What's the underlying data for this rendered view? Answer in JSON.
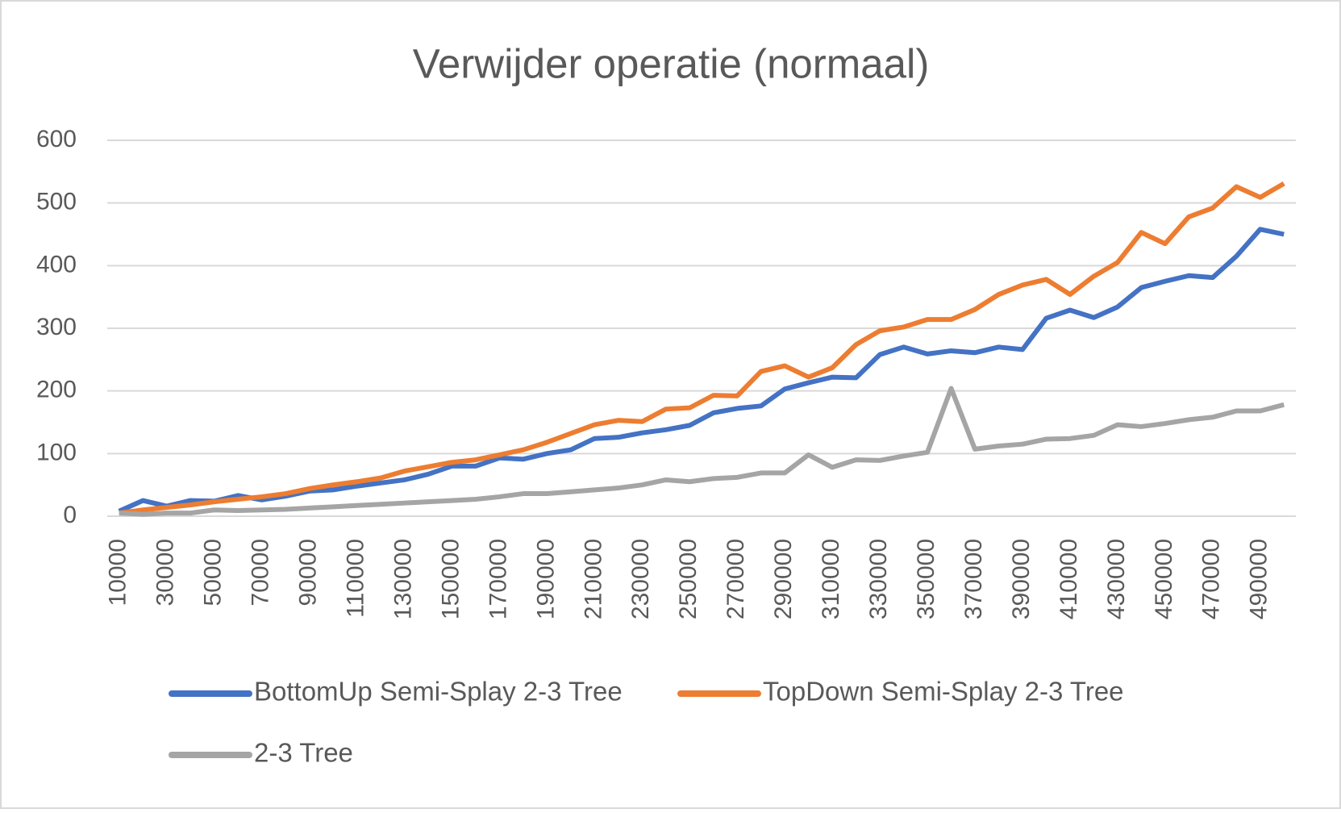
{
  "chart_data": {
    "type": "line",
    "title": "Verwijder operatie (normaal)",
    "categories": [
      10000,
      null,
      30000,
      null,
      50000,
      null,
      70000,
      null,
      90000,
      null,
      110000,
      null,
      130000,
      null,
      150000,
      null,
      170000,
      null,
      190000,
      null,
      210000,
      null,
      230000,
      null,
      250000,
      null,
      270000,
      null,
      290000,
      null,
      310000,
      null,
      330000,
      null,
      350000,
      null,
      370000,
      null,
      390000,
      null,
      410000,
      null,
      430000,
      null,
      450000,
      null,
      470000,
      null,
      490000,
      null
    ],
    "series": [
      {
        "name": "BottomUp Semi-Splay 2-3 Tree",
        "color": "#4472c4",
        "values": [
          8,
          25,
          16,
          25,
          24,
          33,
          26,
          32,
          40,
          42,
          48,
          53,
          58,
          67,
          80,
          80,
          93,
          91,
          100,
          106,
          124,
          126,
          133,
          138,
          145,
          165,
          172,
          176,
          203,
          213,
          222,
          221,
          258,
          270,
          259,
          264,
          261,
          270,
          266,
          316,
          329,
          317,
          334,
          365,
          375,
          384,
          381,
          415,
          458,
          450
        ]
      },
      {
        "name": "TopDown Semi-Splay 2-3 Tree",
        "color": "#ed7d31",
        "values": [
          5,
          10,
          14,
          18,
          23,
          27,
          31,
          36,
          44,
          50,
          55,
          61,
          72,
          79,
          86,
          90,
          98,
          106,
          118,
          132,
          146,
          153,
          151,
          171,
          173,
          193,
          192,
          231,
          240,
          222,
          237,
          274,
          296,
          302,
          314,
          314,
          330,
          354,
          369,
          378,
          354,
          383,
          405,
          453,
          435,
          478,
          492,
          526,
          509,
          531
        ]
      },
      {
        "name": "2-3 Tree",
        "color": "#a5a5a5",
        "values": [
          5,
          3,
          5,
          5,
          10,
          9,
          10,
          11,
          13,
          15,
          17,
          19,
          21,
          23,
          25,
          27,
          31,
          36,
          36,
          39,
          42,
          45,
          50,
          58,
          55,
          60,
          62,
          69,
          69,
          98,
          78,
          90,
          89,
          96,
          102,
          204,
          107,
          112,
          115,
          123,
          124,
          129,
          146,
          143,
          148,
          154,
          158,
          168,
          168,
          178
        ]
      }
    ],
    "ylim": [
      0,
      600
    ],
    "yticks": [
      0,
      100,
      200,
      300,
      400,
      500,
      600
    ],
    "grid": true,
    "legend": "bottom"
  }
}
